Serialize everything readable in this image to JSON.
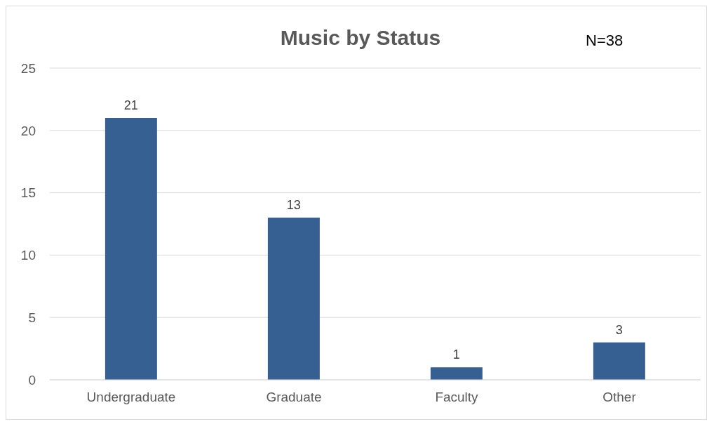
{
  "chart_data": {
    "type": "bar",
    "title": "Music by Status",
    "annotations": [
      "N=38"
    ],
    "categories": [
      "Undergraduate",
      "Graduate",
      "Faculty",
      "Other"
    ],
    "values": [
      21,
      13,
      1,
      3
    ],
    "color": "#376092",
    "ylim": [
      0,
      25
    ],
    "yticks": [
      0,
      5,
      10,
      15,
      20,
      25
    ],
    "grid": "y",
    "data_labels": true
  }
}
